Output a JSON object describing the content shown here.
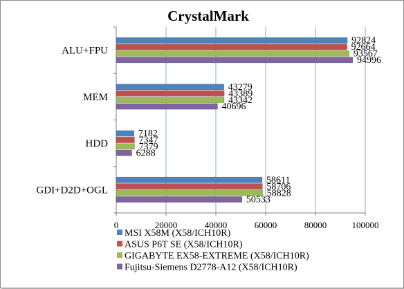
{
  "chart_data": {
    "type": "bar",
    "orientation": "horizontal",
    "title": "CrystalMark",
    "xlabel": "",
    "ylabel": "",
    "categories": [
      "ALU+FPU",
      "MEM",
      "HDD",
      "GDI+D2D+OGL"
    ],
    "xlim": [
      0,
      100000
    ],
    "x_ticks": [
      0,
      20000,
      40000,
      60000,
      80000,
      100000
    ],
    "grid": true,
    "legend_position": "bottom",
    "series": [
      {
        "name": "MSI X58M (X58/ICH10R)",
        "color": "#4f81bd",
        "values": [
          92824,
          43279,
          7182,
          58611
        ]
      },
      {
        "name": "ASUS P6T SE (X58/ICH10R)",
        "color": "#c0504d",
        "values": [
          92664,
          43389,
          7347,
          58706
        ]
      },
      {
        "name": "GIGABYTE EX58-EXTREME (X58/ICH10R)",
        "color": "#9bbb59",
        "values": [
          93567,
          43342,
          7379,
          58828
        ]
      },
      {
        "name": "Fujitsu-Siemens D2778-A12 (X58/ICH10R)",
        "color": "#8064a2",
        "values": [
          94996,
          40696,
          6288,
          50533
        ]
      }
    ]
  }
}
